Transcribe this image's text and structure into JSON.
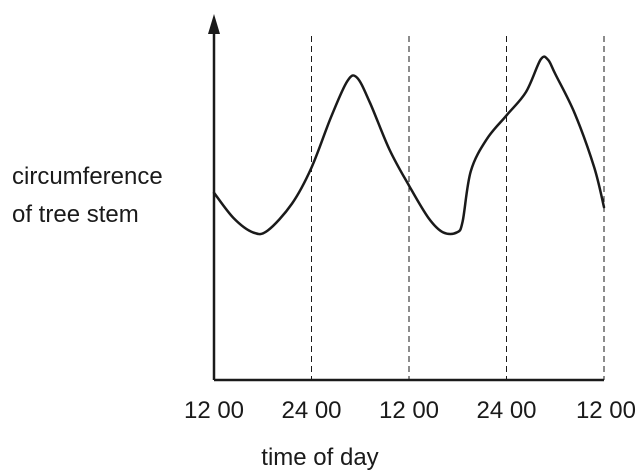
{
  "chart_data": {
    "type": "line",
    "ylabel_lines": [
      "circumference",
      "of tree stem"
    ],
    "xlabel": "time of day",
    "x_ticks": [
      "12 00",
      "24 00",
      "12 00",
      "24 00",
      "12 00"
    ],
    "x_tick_hours": [
      0,
      12,
      24,
      36,
      48
    ],
    "xlim": [
      0,
      48
    ],
    "ylim": [
      0,
      100
    ],
    "y_tick_labels_shown": false,
    "grid": "dashed vertical lines at 24 00, 12 00, 24 00, 12 00",
    "series": [
      {
        "x": [
          0,
          2.4,
          4.8,
          6.6,
          9.6,
          12,
          14.4,
          16.4,
          17.6,
          19.2,
          21.6,
          24,
          26.4,
          28.2,
          29.9,
          30.6,
          31.6,
          33.6,
          36,
          38.4,
          40.2,
          41.1,
          42,
          44.4,
          46.8,
          48
        ],
        "y": [
          52,
          45,
          41,
          41.5,
          49,
          59,
          73,
          83,
          84,
          77,
          64,
          54,
          45,
          41,
          41,
          44,
          58,
          67,
          73.5,
          80,
          89,
          89,
          85,
          74,
          59,
          48
        ]
      }
    ]
  }
}
